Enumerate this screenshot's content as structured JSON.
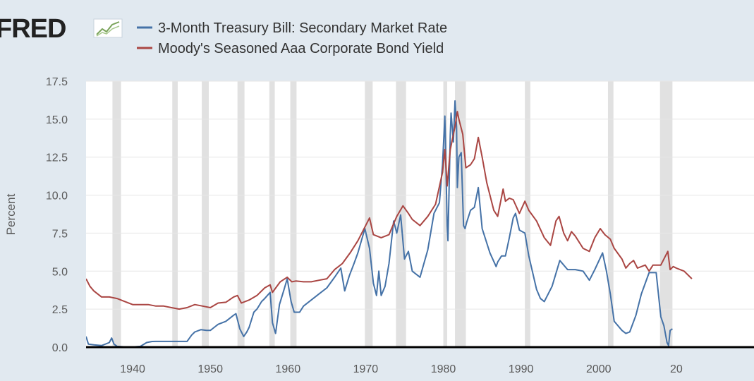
{
  "logo": {
    "text": "FRED",
    "icon": "fred-chart-icon"
  },
  "chart_data": {
    "type": "line",
    "title": "",
    "xlabel": "",
    "ylabel": "Percent",
    "xlim": [
      1934,
      2020
    ],
    "ylim": [
      0,
      17.5
    ],
    "grid": true,
    "legend_position": "top",
    "y_ticks": [
      "0.0",
      "2.5",
      "5.0",
      "7.5",
      "10.0",
      "12.5",
      "15.0",
      "17.5"
    ],
    "x_ticks": [
      "1940",
      "1950",
      "1960",
      "1970",
      "1980",
      "1990",
      "2000",
      "20"
    ],
    "recessions": [
      [
        1937.4,
        1938.5
      ],
      [
        1945.1,
        1945.8
      ],
      [
        1948.9,
        1949.8
      ],
      [
        1953.5,
        1954.4
      ],
      [
        1957.6,
        1958.3
      ],
      [
        1960.3,
        1961.1
      ],
      [
        1969.9,
        1970.9
      ],
      [
        1973.9,
        1975.2
      ],
      [
        1980.0,
        1980.5
      ],
      [
        1981.5,
        1982.9
      ],
      [
        1990.5,
        1991.2
      ],
      [
        2001.2,
        2001.9
      ],
      [
        2007.9,
        2009.5
      ]
    ],
    "series": [
      {
        "name": "3-Month Treasury Bill: Secondary Market Rate",
        "color": "#4572a7",
        "points": [
          [
            1934.0,
            0.7
          ],
          [
            1934.3,
            0.2
          ],
          [
            1935.0,
            0.15
          ],
          [
            1936.0,
            0.1
          ],
          [
            1937.0,
            0.3
          ],
          [
            1937.3,
            0.6
          ],
          [
            1937.6,
            0.2
          ],
          [
            1938.0,
            0.05
          ],
          [
            1939.0,
            0.02
          ],
          [
            1940.0,
            0.01
          ],
          [
            1941.0,
            0.05
          ],
          [
            1941.8,
            0.3
          ],
          [
            1942.5,
            0.37
          ],
          [
            1943.0,
            0.375
          ],
          [
            1945.0,
            0.375
          ],
          [
            1947.0,
            0.375
          ],
          [
            1947.6,
            0.8
          ],
          [
            1948.0,
            1.0
          ],
          [
            1948.8,
            1.15
          ],
          [
            1949.5,
            1.1
          ],
          [
            1950.0,
            1.1
          ],
          [
            1950.5,
            1.3
          ],
          [
            1951.0,
            1.5
          ],
          [
            1952.0,
            1.7
          ],
          [
            1953.0,
            2.1
          ],
          [
            1953.3,
            2.2
          ],
          [
            1953.8,
            1.2
          ],
          [
            1954.3,
            0.7
          ],
          [
            1954.7,
            1.0
          ],
          [
            1955.0,
            1.3
          ],
          [
            1955.6,
            2.3
          ],
          [
            1956.0,
            2.5
          ],
          [
            1956.6,
            3.0
          ],
          [
            1957.0,
            3.2
          ],
          [
            1957.7,
            3.6
          ],
          [
            1958.0,
            1.6
          ],
          [
            1958.4,
            0.9
          ],
          [
            1958.9,
            2.8
          ],
          [
            1959.5,
            3.8
          ],
          [
            1959.9,
            4.5
          ],
          [
            1960.4,
            3.0
          ],
          [
            1960.8,
            2.3
          ],
          [
            1961.5,
            2.3
          ],
          [
            1962.0,
            2.7
          ],
          [
            1963.0,
            3.1
          ],
          [
            1964.0,
            3.5
          ],
          [
            1965.0,
            3.9
          ],
          [
            1966.0,
            4.6
          ],
          [
            1966.8,
            5.2
          ],
          [
            1967.3,
            3.7
          ],
          [
            1967.9,
            4.7
          ],
          [
            1968.5,
            5.5
          ],
          [
            1969.0,
            6.2
          ],
          [
            1969.9,
            7.8
          ],
          [
            1970.5,
            6.5
          ],
          [
            1971.0,
            4.2
          ],
          [
            1971.4,
            3.4
          ],
          [
            1971.7,
            5.0
          ],
          [
            1972.0,
            3.4
          ],
          [
            1972.5,
            4.0
          ],
          [
            1973.0,
            5.5
          ],
          [
            1973.6,
            8.3
          ],
          [
            1974.0,
            7.5
          ],
          [
            1974.5,
            8.7
          ],
          [
            1975.0,
            5.8
          ],
          [
            1975.5,
            6.3
          ],
          [
            1976.0,
            5.0
          ],
          [
            1977.0,
            4.6
          ],
          [
            1977.5,
            5.5
          ],
          [
            1978.0,
            6.4
          ],
          [
            1978.8,
            8.8
          ],
          [
            1979.5,
            9.5
          ],
          [
            1979.9,
            12.0
          ],
          [
            1980.2,
            15.2
          ],
          [
            1980.5,
            8.0
          ],
          [
            1980.6,
            7.0
          ],
          [
            1980.9,
            14.0
          ],
          [
            1981.0,
            15.4
          ],
          [
            1981.3,
            13.5
          ],
          [
            1981.5,
            16.2
          ],
          [
            1981.7,
            14.5
          ],
          [
            1981.8,
            10.5
          ],
          [
            1982.0,
            12.5
          ],
          [
            1982.3,
            12.8
          ],
          [
            1982.6,
            8.0
          ],
          [
            1982.8,
            7.8
          ],
          [
            1983.0,
            8.2
          ],
          [
            1983.5,
            9.0
          ],
          [
            1984.0,
            9.2
          ],
          [
            1984.5,
            10.5
          ],
          [
            1985.0,
            7.8
          ],
          [
            1986.0,
            6.2
          ],
          [
            1986.8,
            5.3
          ],
          [
            1987.0,
            5.6
          ],
          [
            1987.5,
            6.0
          ],
          [
            1988.0,
            6.0
          ],
          [
            1988.5,
            7.2
          ],
          [
            1989.0,
            8.5
          ],
          [
            1989.3,
            8.8
          ],
          [
            1989.8,
            7.7
          ],
          [
            1990.5,
            7.5
          ],
          [
            1991.0,
            6.0
          ],
          [
            1992.0,
            3.8
          ],
          [
            1992.5,
            3.2
          ],
          [
            1993.0,
            3.0
          ],
          [
            1994.0,
            4.0
          ],
          [
            1995.0,
            5.7
          ],
          [
            1996.0,
            5.1
          ],
          [
            1997.0,
            5.1
          ],
          [
            1998.0,
            5.0
          ],
          [
            1998.8,
            4.4
          ],
          [
            1999.5,
            5.1
          ],
          [
            2000.5,
            6.2
          ],
          [
            2001.0,
            5.0
          ],
          [
            2001.5,
            3.5
          ],
          [
            2002.0,
            1.7
          ],
          [
            2003.0,
            1.1
          ],
          [
            2003.5,
            0.9
          ],
          [
            2004.0,
            1.0
          ],
          [
            2004.8,
            2.1
          ],
          [
            2005.5,
            3.5
          ],
          [
            2006.5,
            4.9
          ],
          [
            2007.4,
            4.9
          ],
          [
            2008.0,
            2.0
          ],
          [
            2008.4,
            1.4
          ],
          [
            2008.8,
            0.3
          ],
          [
            2009.0,
            0.1
          ],
          [
            2009.2,
            1.1
          ],
          [
            2009.5,
            1.2
          ]
        ]
      },
      {
        "name": "Moody's Seasoned Aaa Corporate Bond Yield",
        "color": "#aa4643",
        "points": [
          [
            1934.0,
            4.5
          ],
          [
            1934.5,
            4.0
          ],
          [
            1935.0,
            3.7
          ],
          [
            1936.0,
            3.3
          ],
          [
            1937.0,
            3.3
          ],
          [
            1938.0,
            3.2
          ],
          [
            1939.0,
            3.0
          ],
          [
            1940.0,
            2.8
          ],
          [
            1941.0,
            2.8
          ],
          [
            1942.0,
            2.8
          ],
          [
            1943.0,
            2.7
          ],
          [
            1944.0,
            2.7
          ],
          [
            1945.0,
            2.6
          ],
          [
            1946.0,
            2.5
          ],
          [
            1947.0,
            2.6
          ],
          [
            1948.0,
            2.8
          ],
          [
            1949.0,
            2.7
          ],
          [
            1950.0,
            2.6
          ],
          [
            1951.0,
            2.9
          ],
          [
            1952.0,
            2.95
          ],
          [
            1953.0,
            3.3
          ],
          [
            1953.5,
            3.4
          ],
          [
            1954.0,
            2.9
          ],
          [
            1955.0,
            3.1
          ],
          [
            1956.0,
            3.4
          ],
          [
            1957.0,
            3.9
          ],
          [
            1957.7,
            4.1
          ],
          [
            1958.0,
            3.6
          ],
          [
            1959.0,
            4.3
          ],
          [
            1959.9,
            4.6
          ],
          [
            1960.5,
            4.3
          ],
          [
            1961.0,
            4.35
          ],
          [
            1962.0,
            4.3
          ],
          [
            1963.0,
            4.3
          ],
          [
            1964.0,
            4.4
          ],
          [
            1965.0,
            4.5
          ],
          [
            1966.0,
            5.1
          ],
          [
            1967.0,
            5.5
          ],
          [
            1968.0,
            6.2
          ],
          [
            1969.0,
            7.0
          ],
          [
            1970.0,
            8.0
          ],
          [
            1970.5,
            8.5
          ],
          [
            1971.0,
            7.4
          ],
          [
            1972.0,
            7.2
          ],
          [
            1973.0,
            7.4
          ],
          [
            1974.0,
            8.6
          ],
          [
            1974.8,
            9.3
          ],
          [
            1975.5,
            8.8
          ],
          [
            1976.0,
            8.4
          ],
          [
            1977.0,
            8.0
          ],
          [
            1978.0,
            8.6
          ],
          [
            1979.0,
            9.4
          ],
          [
            1979.9,
            11.5
          ],
          [
            1980.2,
            13.0
          ],
          [
            1980.5,
            10.6
          ],
          [
            1980.9,
            13.0
          ],
          [
            1981.5,
            14.5
          ],
          [
            1981.8,
            15.5
          ],
          [
            1982.0,
            15.0
          ],
          [
            1982.5,
            14.0
          ],
          [
            1982.9,
            11.8
          ],
          [
            1983.5,
            12.0
          ],
          [
            1984.0,
            12.4
          ],
          [
            1984.5,
            13.8
          ],
          [
            1985.0,
            12.5
          ],
          [
            1985.6,
            10.8
          ],
          [
            1986.5,
            9.0
          ],
          [
            1987.0,
            8.6
          ],
          [
            1987.7,
            10.4
          ],
          [
            1988.0,
            9.6
          ],
          [
            1988.5,
            9.8
          ],
          [
            1989.0,
            9.7
          ],
          [
            1989.8,
            8.8
          ],
          [
            1990.5,
            9.6
          ],
          [
            1991.0,
            9.0
          ],
          [
            1992.0,
            8.3
          ],
          [
            1993.0,
            7.2
          ],
          [
            1993.8,
            6.7
          ],
          [
            1994.5,
            8.3
          ],
          [
            1994.9,
            8.6
          ],
          [
            1995.5,
            7.5
          ],
          [
            1996.0,
            7.0
          ],
          [
            1996.5,
            7.6
          ],
          [
            1997.0,
            7.3
          ],
          [
            1998.0,
            6.5
          ],
          [
            1998.8,
            6.3
          ],
          [
            1999.5,
            7.2
          ],
          [
            2000.2,
            7.8
          ],
          [
            2000.8,
            7.4
          ],
          [
            2001.5,
            7.1
          ],
          [
            2002.0,
            6.5
          ],
          [
            2003.0,
            5.8
          ],
          [
            2003.5,
            5.2
          ],
          [
            2004.0,
            5.5
          ],
          [
            2004.5,
            5.7
          ],
          [
            2005.0,
            5.2
          ],
          [
            2006.0,
            5.4
          ],
          [
            2006.5,
            5.0
          ],
          [
            2007.0,
            5.4
          ],
          [
            2008.0,
            5.4
          ],
          [
            2008.9,
            6.3
          ],
          [
            2009.2,
            5.1
          ],
          [
            2009.6,
            5.3
          ],
          [
            2010.0,
            5.2
          ],
          [
            2011.0,
            5.0
          ],
          [
            2012.0,
            4.5
          ]
        ]
      }
    ]
  }
}
